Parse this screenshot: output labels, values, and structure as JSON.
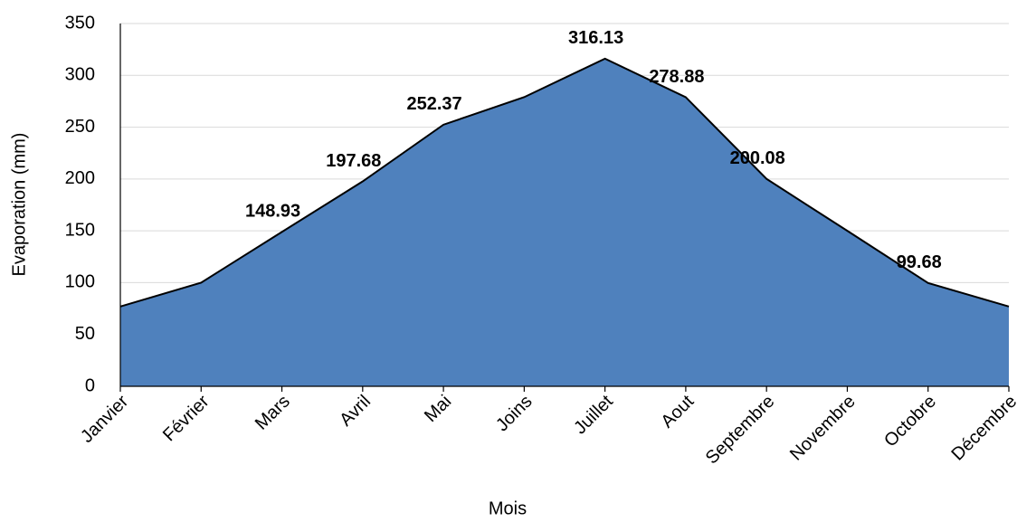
{
  "chart_data": {
    "type": "area",
    "x_label": "Mois",
    "y_label": "Evaporation (mm)",
    "categories": [
      "Janvier",
      "Février",
      "Mars",
      "Avril",
      "Mai",
      "Joins",
      "Juillet",
      "Aout",
      "Septembre",
      "Novembre",
      "Octobre",
      "Décembre"
    ],
    "values": [
      77,
      100,
      148.93,
      197.68,
      252.37,
      279,
      316.13,
      278.88,
      200.08,
      150,
      99.68,
      77
    ],
    "value_labels": [
      null,
      null,
      "148.93",
      "197.68",
      "252.37",
      null,
      "316.13",
      "278.88",
      "200.08",
      null,
      "99.68",
      null
    ],
    "color": "#4f81bd",
    "ylim": [
      0,
      350
    ],
    "yticks": [
      0,
      50,
      100,
      150,
      200,
      250,
      300,
      350
    ],
    "grid": true
  }
}
